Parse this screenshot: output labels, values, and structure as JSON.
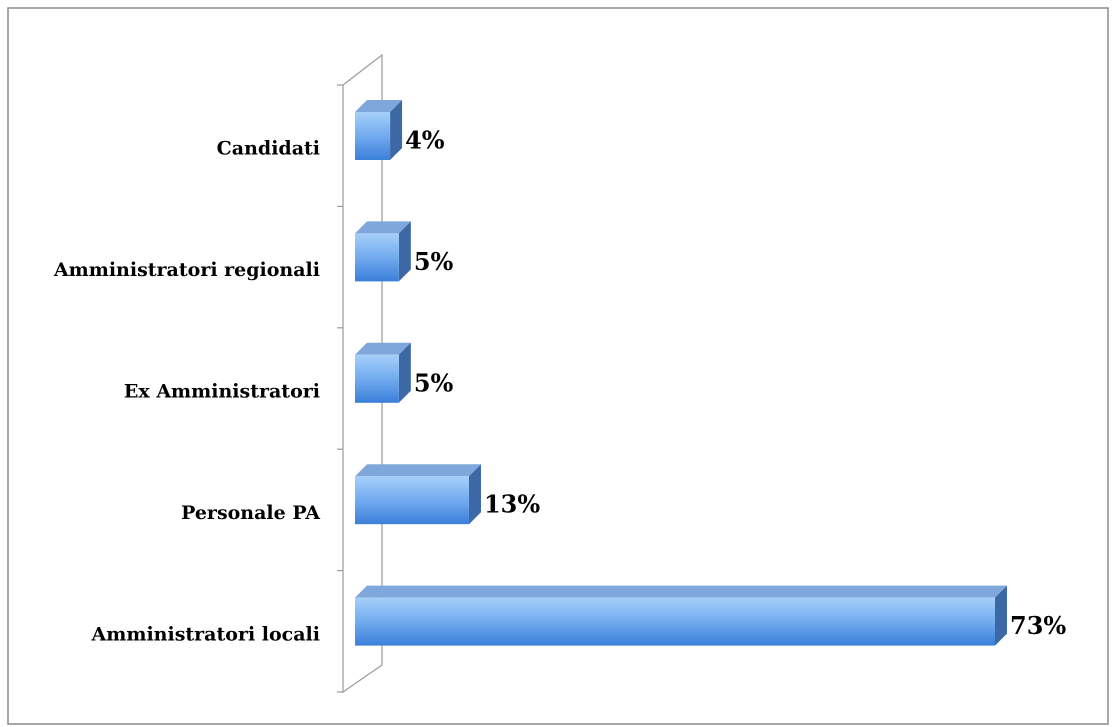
{
  "chart_data": {
    "type": "bar",
    "orientation": "horizontal",
    "categories": [
      "Candidati",
      "Amministratori regionali",
      "Ex Amministratori",
      "Personale PA",
      "Amministratori locali"
    ],
    "values": [
      4,
      5,
      5,
      13,
      73
    ],
    "value_labels": [
      "4%",
      "5%",
      "5%",
      "13%",
      "73%"
    ],
    "color": "#4a8fe3"
  }
}
